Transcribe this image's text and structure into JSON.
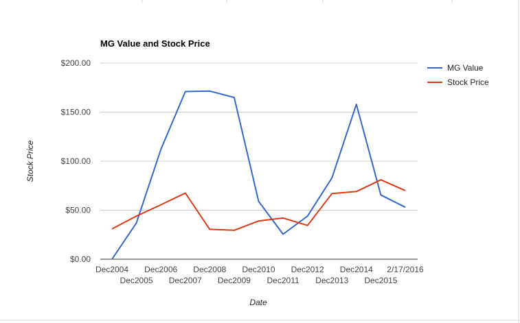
{
  "chart_data": {
    "type": "line",
    "title": "MG Value and Stock Price",
    "xlabel": "Date",
    "ylabel": "Stock Price",
    "categories": [
      "Dec2004",
      "Dec2005",
      "Dec2006",
      "Dec2007",
      "Dec2008",
      "Dec2009",
      "Dec2010",
      "Dec2011",
      "Dec2012",
      "Dec2013",
      "Dec2014",
      "Dec2015",
      "2/17/2016"
    ],
    "series": [
      {
        "name": "MG Value",
        "color": "#3366cc",
        "values": [
          0,
          37,
          112,
          171,
          171.5,
          165,
          59,
          25.5,
          44,
          83,
          158,
          65.5,
          53
        ]
      },
      {
        "name": "Stock Price",
        "color": "#dc3912",
        "values": [
          31,
          44,
          55.5,
          67.5,
          30.5,
          29.5,
          39,
          42,
          34.5,
          67,
          69,
          81,
          70
        ]
      }
    ],
    "yticks": [
      "$0.00",
      "$50.00",
      "$100.00",
      "$150.00",
      "$200.00"
    ],
    "ytick_values": [
      0,
      50,
      100,
      150,
      200
    ],
    "ylim": [
      0,
      200
    ],
    "grid": true,
    "legend": "right"
  }
}
